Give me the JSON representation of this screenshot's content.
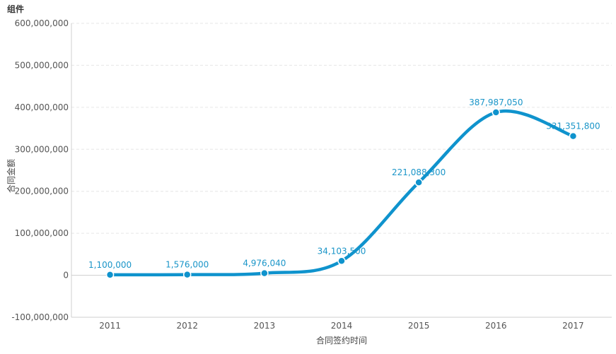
{
  "title": "组件",
  "chart_data": {
    "type": "line",
    "categories": [
      "2011",
      "2012",
      "2013",
      "2014",
      "2015",
      "2016",
      "2017"
    ],
    "series": [
      {
        "values": [
          1100000,
          1576000,
          4976040,
          34103500,
          221088300,
          387987050,
          331351800
        ],
        "labels": [
          "1,100,000",
          "1,576,000",
          "4,976,040",
          "34,103,500",
          "221,088,300",
          "387,987,050",
          "331,351,800"
        ]
      }
    ],
    "ylim": [
      -100000000,
      600000000
    ],
    "yticks": [
      600000000,
      500000000,
      400000000,
      300000000,
      200000000,
      100000000,
      0,
      -100000000
    ],
    "ytick_labels": [
      "600,000,000",
      "500,000,000",
      "400,000,000",
      "300,000,000",
      "200,000,000",
      "100,000,000",
      "0",
      "-100,000,000"
    ],
    "xlabel": "合同签约时间",
    "ylabel": "合同金额",
    "grid": true,
    "line_color": "#0f93cd",
    "smooth": true
  }
}
